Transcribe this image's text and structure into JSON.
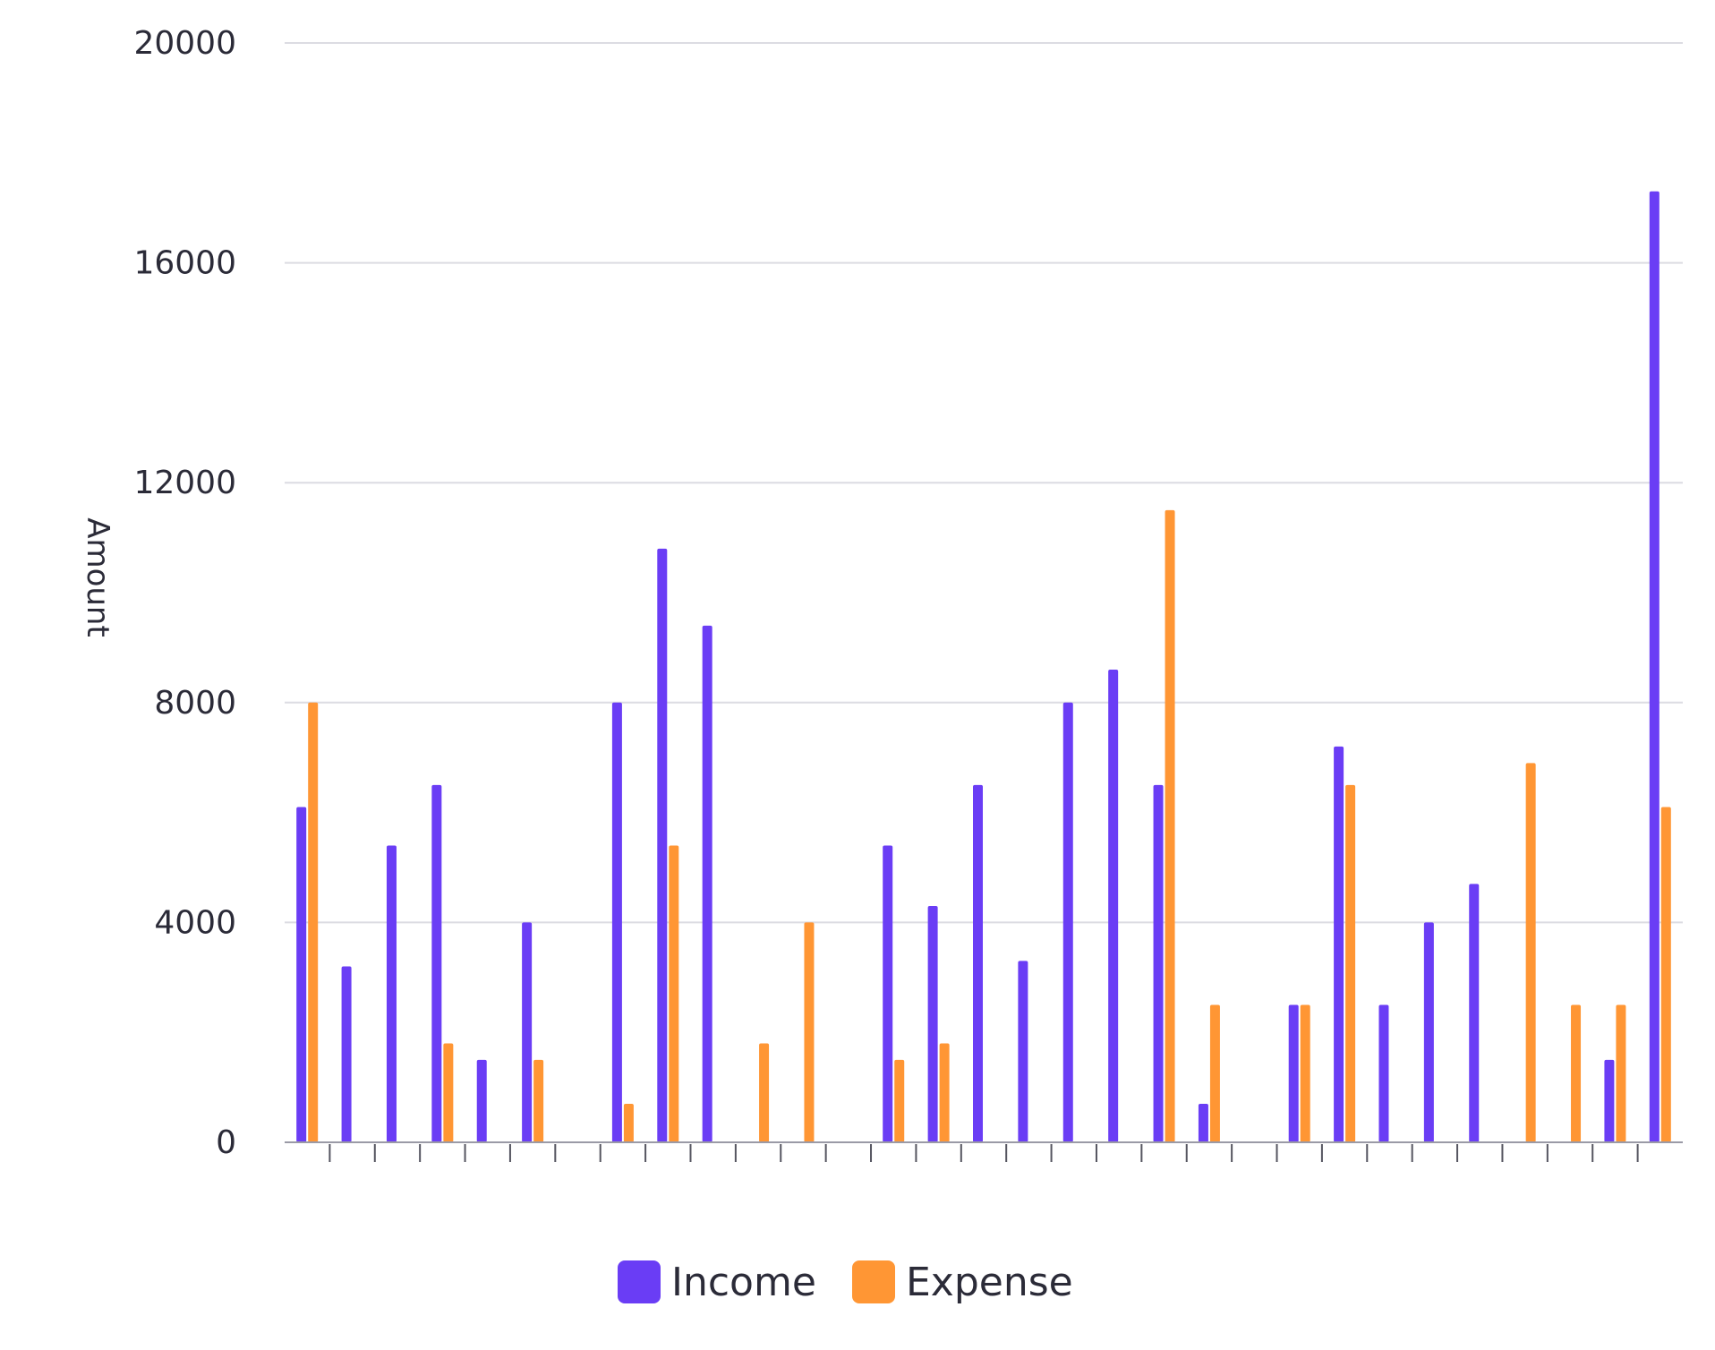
{
  "chart_data": {
    "type": "bar",
    "title": "",
    "xlabel": "",
    "ylabel": "Amount",
    "ylim": [
      0,
      20000
    ],
    "yticks": [
      0,
      4000,
      8000,
      12000,
      16000,
      20000
    ],
    "grid": true,
    "legend_position": "bottom-center",
    "categories": [
      "",
      "",
      "",
      "",
      "",
      "",
      "",
      "",
      "",
      "",
      "",
      "",
      "",
      "",
      "",
      "",
      "",
      "",
      "",
      "",
      "",
      "",
      "",
      "",
      "",
      "",
      "",
      "",
      "",
      "",
      ""
    ],
    "series": [
      {
        "name": "Income",
        "color": "#6a3df5",
        "values": [
          6100,
          3200,
          5400,
          6500,
          1500,
          4000,
          0,
          8000,
          10800,
          9400,
          0,
          0,
          0,
          5400,
          4300,
          6500,
          3300,
          8000,
          8600,
          6500,
          700,
          0,
          2500,
          7200,
          2500,
          4000,
          4700,
          0,
          0,
          1500,
          17300
        ]
      },
      {
        "name": "Expense",
        "color": "#ff9634",
        "values": [
          8000,
          0,
          0,
          1800,
          0,
          1500,
          0,
          700,
          5400,
          0,
          1800,
          4000,
          0,
          1500,
          1800,
          0,
          0,
          0,
          0,
          11500,
          2500,
          0,
          2500,
          6500,
          0,
          0,
          0,
          6900,
          2500,
          2500,
          6100
        ]
      }
    ]
  }
}
